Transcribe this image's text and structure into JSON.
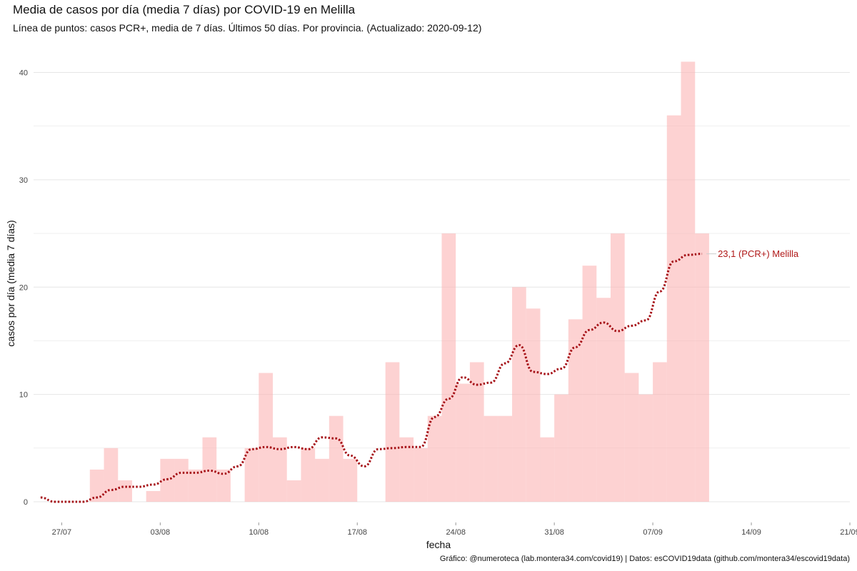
{
  "title": "Media de casos por día (media 7 días) por COVID-19 en Melilla",
  "subtitle": "Línea de puntos: casos PCR+, media de 7 días. Últimos 50 días. Por provincia. (Actualizado: 2020-09-12)",
  "caption": "Gráfico: @numeroteca (lab.montera34.com/covid19) | Datos: esCOVID19data (github.com/montera34/escovid19data)",
  "colors": {
    "bar": "#fbb4b4",
    "line": "#a50f15",
    "annotation": "#b01818",
    "grid": "#e6e6e6"
  },
  "chart_data": {
    "type": "bar",
    "xlabel": "fecha",
    "ylabel": "casos por día (media 7 días)",
    "x_ticks": [
      "27/07",
      "03/08",
      "10/08",
      "17/08",
      "24/08",
      "31/08",
      "07/09",
      "14/09",
      "21/09"
    ],
    "y_ticks": [
      "0",
      "10",
      "20",
      "30",
      "40"
    ],
    "xlim": [
      "2020-07-25",
      "2020-09-21"
    ],
    "ylim": [
      0,
      42
    ],
    "grid": true,
    "series": [
      {
        "type": "bar",
        "dates": [
          "2020-07-29",
          "2020-07-30",
          "2020-07-31",
          "2020-08-02",
          "2020-08-03",
          "2020-08-04",
          "2020-08-05",
          "2020-08-06",
          "2020-08-07",
          "2020-08-09",
          "2020-08-10",
          "2020-08-11",
          "2020-08-12",
          "2020-08-13",
          "2020-08-14",
          "2020-08-15",
          "2020-08-16",
          "2020-08-19",
          "2020-08-20",
          "2020-08-21",
          "2020-08-22",
          "2020-08-23",
          "2020-08-24",
          "2020-08-25",
          "2020-08-26",
          "2020-08-27",
          "2020-08-28",
          "2020-08-29",
          "2020-08-30",
          "2020-08-31",
          "2020-09-01",
          "2020-09-02",
          "2020-09-03",
          "2020-09-04",
          "2020-09-05",
          "2020-09-06",
          "2020-09-07",
          "2020-09-08",
          "2020-09-09",
          "2020-09-10"
        ],
        "values": [
          3,
          5,
          2,
          1,
          4,
          4,
          3,
          6,
          3,
          5,
          12,
          6,
          2,
          5,
          4,
          8,
          4,
          13,
          6,
          5,
          8,
          25,
          11,
          13,
          8,
          8,
          20,
          18,
          6,
          10,
          17,
          22,
          19,
          25,
          12,
          10,
          13,
          36,
          41,
          25
        ]
      },
      {
        "type": "line",
        "name": "PCR+",
        "dates": [
          "2020-07-25",
          "2020-07-26",
          "2020-07-27",
          "2020-07-28",
          "2020-07-29",
          "2020-07-30",
          "2020-07-31",
          "2020-08-01",
          "2020-08-02",
          "2020-08-03",
          "2020-08-04",
          "2020-08-05",
          "2020-08-06",
          "2020-08-07",
          "2020-08-08",
          "2020-08-09",
          "2020-08-10",
          "2020-08-11",
          "2020-08-12",
          "2020-08-13",
          "2020-08-14",
          "2020-08-15",
          "2020-08-16",
          "2020-08-17",
          "2020-08-18",
          "2020-08-19",
          "2020-08-20",
          "2020-08-21",
          "2020-08-22",
          "2020-08-23",
          "2020-08-24",
          "2020-08-25",
          "2020-08-26",
          "2020-08-27",
          "2020-08-28",
          "2020-08-29",
          "2020-08-30",
          "2020-08-31",
          "2020-09-01",
          "2020-09-02",
          "2020-09-03",
          "2020-09-04",
          "2020-09-05",
          "2020-09-06",
          "2020-09-07",
          "2020-09-08",
          "2020-09-09",
          "2020-09-10"
        ],
        "values": [
          0.4,
          0,
          0,
          0,
          0.4,
          1.1,
          1.4,
          1.4,
          1.6,
          2.1,
          2.7,
          2.7,
          2.9,
          2.6,
          3.3,
          4.9,
          5.1,
          4.9,
          5.1,
          4.9,
          6.0,
          5.9,
          4.3,
          3.3,
          4.9,
          5.0,
          5.1,
          5.1,
          7.9,
          9.6,
          11.6,
          10.9,
          11.1,
          12.9,
          14.6,
          12.1,
          11.9,
          12.4,
          14.4,
          16.0,
          16.7,
          15.9,
          16.4,
          16.9,
          19.6,
          22.4,
          23.0,
          23.1
        ]
      }
    ],
    "annotation": {
      "text": "23,1 (PCR+) Melilla",
      "date": "2020-09-10",
      "value": 23.1
    }
  }
}
